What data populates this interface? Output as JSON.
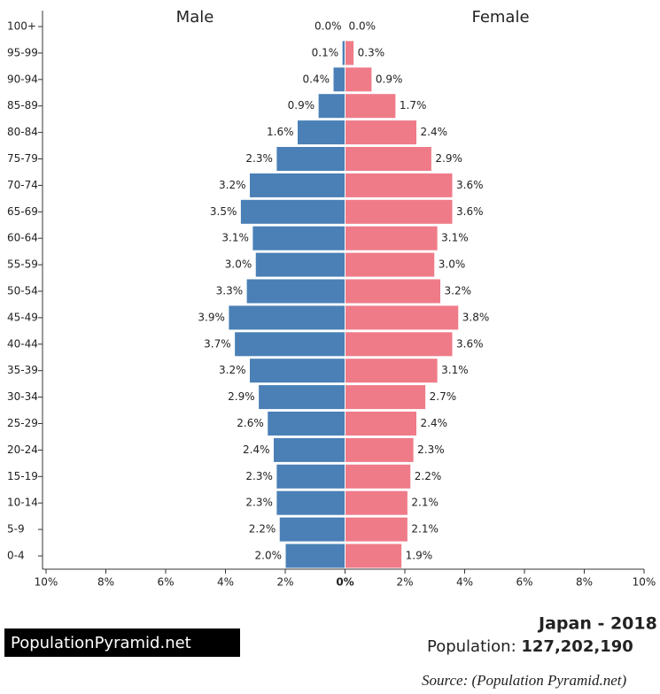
{
  "chart_data": {
    "type": "pyramid",
    "left_label": "Male",
    "right_label": "Female",
    "categories": [
      "100+",
      "95-99",
      "90-94",
      "85-89",
      "80-84",
      "75-79",
      "70-74",
      "65-69",
      "60-64",
      "55-59",
      "50-54",
      "45-49",
      "40-44",
      "35-39",
      "30-34",
      "25-29",
      "20-24",
      "15-19",
      "10-14",
      "5-9",
      "0-4"
    ],
    "series": [
      {
        "name": "Male",
        "side": "left",
        "color": "#4a80b6",
        "values": [
          0.0,
          0.1,
          0.4,
          0.9,
          1.6,
          2.3,
          3.2,
          3.5,
          3.1,
          3.0,
          3.3,
          3.9,
          3.7,
          3.2,
          2.9,
          2.6,
          2.4,
          2.3,
          2.3,
          2.2,
          2.0
        ],
        "value_labels": [
          "0.0%",
          "0.1%",
          "0.4%",
          "0.9%",
          "1.6%",
          "2.3%",
          "3.2%",
          "3.5%",
          "3.1%",
          "3.0%",
          "3.3%",
          "3.9%",
          "3.7%",
          "3.2%",
          "2.9%",
          "2.6%",
          "2.4%",
          "2.3%",
          "2.3%",
          "2.2%",
          "2.0%"
        ]
      },
      {
        "name": "Female",
        "side": "right",
        "color": "#ef7b89",
        "values": [
          0.0,
          0.3,
          0.9,
          1.7,
          2.4,
          2.9,
          3.6,
          3.6,
          3.1,
          3.0,
          3.2,
          3.8,
          3.6,
          3.1,
          2.7,
          2.4,
          2.3,
          2.2,
          2.1,
          2.1,
          1.9
        ],
        "value_labels": [
          "0.0%",
          "0.3%",
          "0.9%",
          "1.7%",
          "2.4%",
          "2.9%",
          "3.6%",
          "3.6%",
          "3.1%",
          "3.0%",
          "3.2%",
          "3.8%",
          "3.6%",
          "3.1%",
          "2.7%",
          "2.4%",
          "2.3%",
          "2.2%",
          "2.1%",
          "2.1%",
          "1.9%"
        ]
      }
    ],
    "xlim": [
      -10,
      10
    ],
    "xticks": [
      {
        "value": -10,
        "label": "10%"
      },
      {
        "value": -8,
        "label": "8%"
      },
      {
        "value": -6,
        "label": "6%"
      },
      {
        "value": -4,
        "label": "4%"
      },
      {
        "value": -2,
        "label": "2%"
      },
      {
        "value": 0,
        "label": "0%"
      },
      {
        "value": 2,
        "label": "2%"
      },
      {
        "value": 4,
        "label": "4%"
      },
      {
        "value": 6,
        "label": "6%"
      },
      {
        "value": 8,
        "label": "8%"
      },
      {
        "value": 10,
        "label": "10%"
      }
    ],
    "brand": "PopulationPyramid.net",
    "country_year": "Japan - 2018",
    "population_label": "Population:",
    "population": "127,202,190",
    "source": "Source: (Population Pyramid.net)"
  }
}
